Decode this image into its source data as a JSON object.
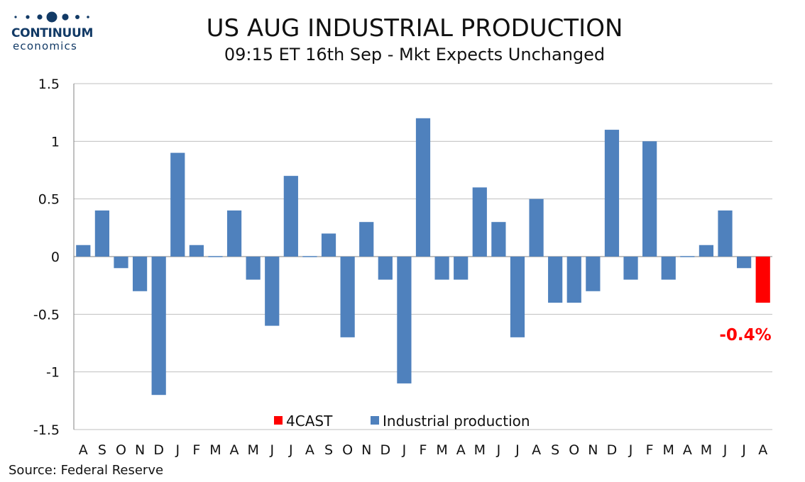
{
  "logo": {
    "name": "CONTINUUM",
    "sub": "economics"
  },
  "header": {
    "title": "US AUG INDUSTRIAL PRODUCTION",
    "subtitle": "09:15 ET 16th Sep - Mkt Expects Unchanged"
  },
  "footer": {
    "source": "Source: Federal Reserve"
  },
  "colors": {
    "actual": "#4f81bd",
    "forecast": "#ff0000",
    "grid": "#bfbfbf",
    "axis": "#808080"
  },
  "chart_data": {
    "type": "bar",
    "categories": [
      "A",
      "S",
      "O",
      "N",
      "D",
      "J",
      "F",
      "M",
      "A",
      "M",
      "J",
      "J",
      "A",
      "S",
      "O",
      "N",
      "D",
      "J",
      "F",
      "M",
      "A",
      "M",
      "J",
      "J",
      "A",
      "S",
      "O",
      "N",
      "D",
      "J",
      "F",
      "M",
      "A",
      "M",
      "J",
      "J",
      "A"
    ],
    "series": [
      {
        "name": "Industrial production",
        "values": [
          0.1,
          0.4,
          -0.1,
          -0.3,
          -1.2,
          0.9,
          0.1,
          0.0,
          0.4,
          -0.2,
          -0.6,
          0.7,
          0.0,
          0.2,
          -0.7,
          0.3,
          -0.2,
          -1.1,
          1.2,
          -0.2,
          -0.2,
          0.6,
          0.3,
          -0.7,
          0.5,
          -0.4,
          -0.4,
          -0.3,
          1.1,
          -0.2,
          1.0,
          -0.2,
          0.0,
          0.1,
          0.4,
          -0.1,
          null
        ]
      },
      {
        "name": "4CAST",
        "values": [
          null,
          null,
          null,
          null,
          null,
          null,
          null,
          null,
          null,
          null,
          null,
          null,
          null,
          null,
          null,
          null,
          null,
          null,
          null,
          null,
          null,
          null,
          null,
          null,
          null,
          null,
          null,
          null,
          null,
          null,
          null,
          null,
          null,
          null,
          null,
          null,
          -0.4
        ]
      }
    ],
    "ylim": [
      -1.5,
      1.5
    ],
    "yticks": [
      "1.5",
      "1",
      "0.5",
      "0",
      "-0.5",
      "-1",
      "-1.5"
    ],
    "grid": true,
    "legend_position": "bottom-center",
    "annotation": "-0.4%"
  }
}
